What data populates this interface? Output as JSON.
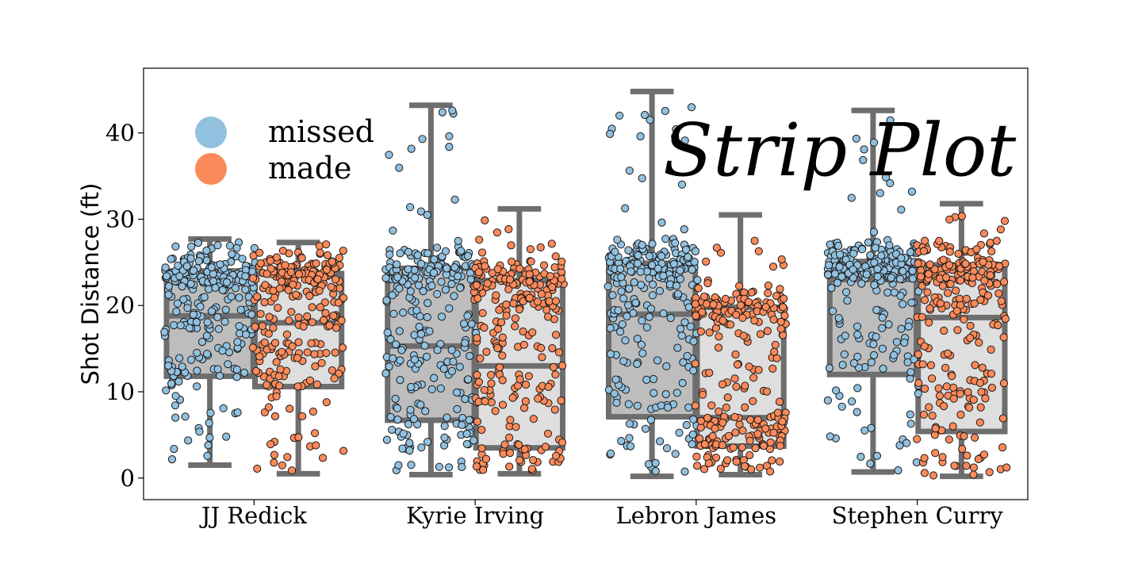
{
  "chart_data": {
    "type": "box-strip",
    "ylabel": "Shot Distance (ft)",
    "ylim": [
      -2.5,
      47.5
    ],
    "yticks": [
      0,
      10,
      20,
      30,
      40
    ],
    "categories": [
      "JJ Redick",
      "Kyrie Irving",
      "Lebron James",
      "Stephen Curry"
    ],
    "annotation": "Strip Plot",
    "legend": {
      "position": "upper-left",
      "entries": [
        {
          "name": "missed",
          "color": "#92c0df"
        },
        {
          "name": "made",
          "color": "#fb8a5a"
        }
      ]
    },
    "colors": {
      "missed": "#92c0df",
      "made": "#fb8a5a",
      "box_missed": "#bdbdbd",
      "box_made": "#dedede",
      "box_line": "#6e6e6e"
    },
    "series": [
      {
        "name": "missed",
        "boxes": [
          {
            "category": "JJ Redick",
            "whislo": 1.5,
            "q1": 11.8,
            "median": 18.8,
            "q3": 24.0,
            "whishi": 27.7
          },
          {
            "category": "Kyrie Irving",
            "whislo": 0.4,
            "q1": 6.7,
            "median": 15.3,
            "q3": 24.3,
            "whishi": 43.2
          },
          {
            "category": "Lebron James",
            "whislo": 0.2,
            "q1": 7.1,
            "median": 19.0,
            "q3": 24.9,
            "whishi": 44.8
          },
          {
            "category": "Stephen Curry",
            "whislo": 0.7,
            "q1": 12.0,
            "median": 23.0,
            "q3": 25.1,
            "whishi": 42.6
          }
        ]
      },
      {
        "name": "made",
        "boxes": [
          {
            "category": "JJ Redick",
            "whislo": 0.5,
            "q1": 10.6,
            "median": 18.0,
            "q3": 23.7,
            "whishi": 27.3
          },
          {
            "category": "Kyrie Irving",
            "whislo": 0.5,
            "q1": 3.5,
            "median": 13.0,
            "q3": 22.9,
            "whishi": 31.2
          },
          {
            "category": "Lebron James",
            "whislo": 0.4,
            "q1": 3.7,
            "median": 7.0,
            "q3": 19.8,
            "whishi": 30.5
          },
          {
            "category": "Stephen Curry",
            "whislo": 0.2,
            "q1": 5.4,
            "median": 18.6,
            "q3": 24.7,
            "whishi": 31.8
          }
        ]
      }
    ]
  }
}
